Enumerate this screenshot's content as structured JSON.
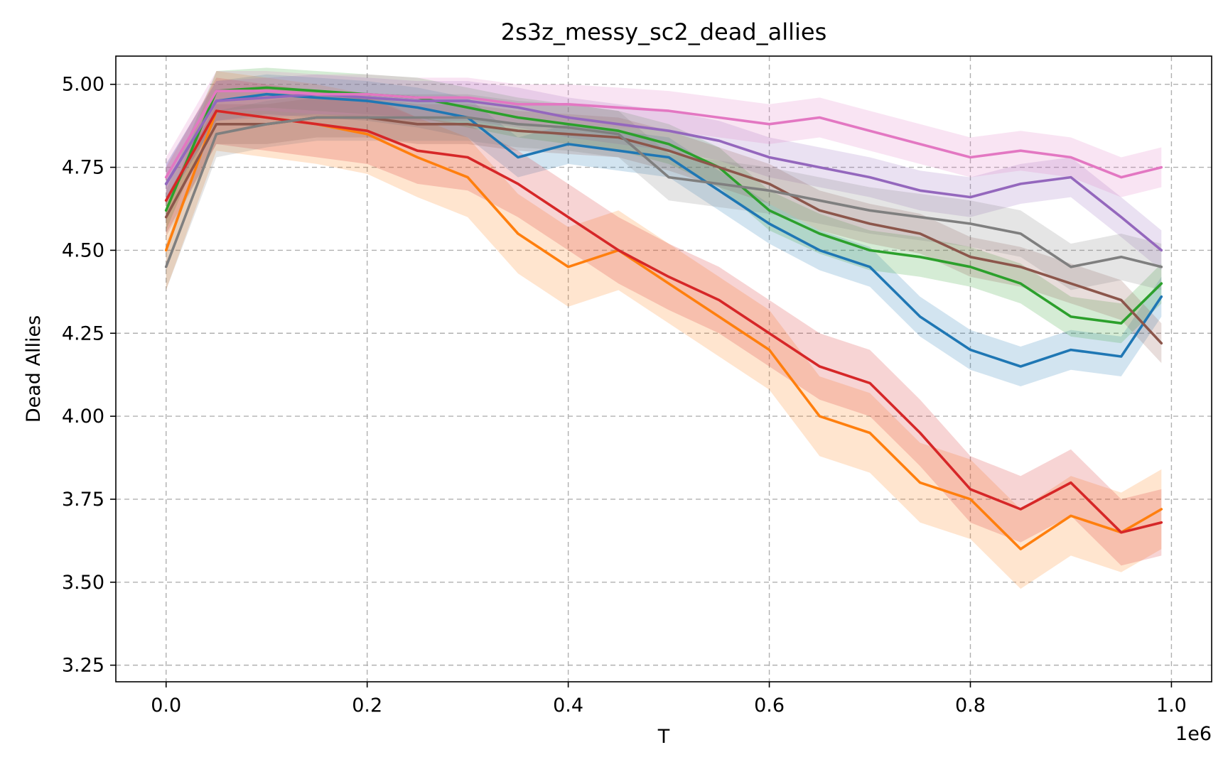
{
  "chart_data": {
    "type": "line",
    "title": "2s3z_messy_sc2_dead_allies",
    "xlabel": "T",
    "ylabel": "Dead Allies",
    "x_offset_label": "1e6",
    "xlim": [
      -0.05,
      1.04
    ],
    "ylim": [
      3.2,
      5.085
    ],
    "xticks": [
      0.0,
      0.2,
      0.4,
      0.6,
      0.8,
      1.0
    ],
    "xtick_labels": [
      "0.0",
      "0.2",
      "0.4",
      "0.6",
      "0.8",
      "1.0"
    ],
    "yticks": [
      3.25,
      3.5,
      3.75,
      4.0,
      4.25,
      4.5,
      4.75,
      5.0
    ],
    "ytick_labels": [
      "3.25",
      "3.50",
      "3.75",
      "4.00",
      "4.25",
      "4.50",
      "4.75",
      "5.00"
    ],
    "grid": true,
    "x": [
      0.0,
      0.05,
      0.1,
      0.15,
      0.2,
      0.25,
      0.3,
      0.35,
      0.4,
      0.45,
      0.5,
      0.55,
      0.6,
      0.65,
      0.7,
      0.75,
      0.8,
      0.85,
      0.9,
      0.95,
      0.99
    ],
    "series": [
      {
        "color": "#1f77b4",
        "band": 0.06,
        "values": [
          4.7,
          4.95,
          4.97,
          4.96,
          4.95,
          4.93,
          4.9,
          4.78,
          4.82,
          4.8,
          4.78,
          4.68,
          4.58,
          4.5,
          4.45,
          4.3,
          4.2,
          4.15,
          4.2,
          4.18,
          4.36
        ]
      },
      {
        "color": "#ff7f0e",
        "band": 0.12,
        "values": [
          4.5,
          4.92,
          4.9,
          4.88,
          4.85,
          4.78,
          4.72,
          4.55,
          4.45,
          4.5,
          4.4,
          4.3,
          4.2,
          4.0,
          3.95,
          3.8,
          3.75,
          3.6,
          3.7,
          3.65,
          3.72
        ]
      },
      {
        "color": "#2ca02c",
        "band": 0.06,
        "values": [
          4.62,
          4.98,
          4.99,
          4.98,
          4.97,
          4.96,
          4.93,
          4.9,
          4.88,
          4.86,
          4.82,
          4.75,
          4.62,
          4.55,
          4.5,
          4.48,
          4.45,
          4.4,
          4.3,
          4.28,
          4.4
        ]
      },
      {
        "color": "#d62728",
        "band": 0.1,
        "values": [
          4.65,
          4.92,
          4.9,
          4.88,
          4.86,
          4.8,
          4.78,
          4.7,
          4.6,
          4.5,
          4.42,
          4.35,
          4.25,
          4.15,
          4.1,
          3.95,
          3.78,
          3.72,
          3.8,
          3.65,
          3.68
        ]
      },
      {
        "color": "#9467bd",
        "band": 0.06,
        "values": [
          4.7,
          4.95,
          4.96,
          4.97,
          4.96,
          4.95,
          4.95,
          4.93,
          4.9,
          4.88,
          4.86,
          4.83,
          4.78,
          4.75,
          4.72,
          4.68,
          4.66,
          4.7,
          4.72,
          4.6,
          4.5
        ]
      },
      {
        "color": "#8c564b",
        "band": 0.06,
        "values": [
          4.6,
          4.88,
          4.88,
          4.9,
          4.9,
          4.88,
          4.88,
          4.86,
          4.85,
          4.84,
          4.8,
          4.75,
          4.7,
          4.62,
          4.58,
          4.55,
          4.48,
          4.45,
          4.4,
          4.35,
          4.22
        ]
      },
      {
        "color": "#e377c2",
        "band": 0.06,
        "values": [
          4.72,
          4.98,
          4.98,
          4.97,
          4.97,
          4.96,
          4.96,
          4.94,
          4.94,
          4.93,
          4.92,
          4.9,
          4.88,
          4.9,
          4.86,
          4.82,
          4.78,
          4.8,
          4.78,
          4.72,
          4.75
        ]
      },
      {
        "color": "#7f7f7f",
        "band": 0.07,
        "values": [
          4.45,
          4.85,
          4.88,
          4.9,
          4.9,
          4.9,
          4.9,
          4.88,
          4.87,
          4.85,
          4.72,
          4.7,
          4.68,
          4.65,
          4.62,
          4.6,
          4.58,
          4.55,
          4.45,
          4.48,
          4.45
        ]
      }
    ]
  }
}
